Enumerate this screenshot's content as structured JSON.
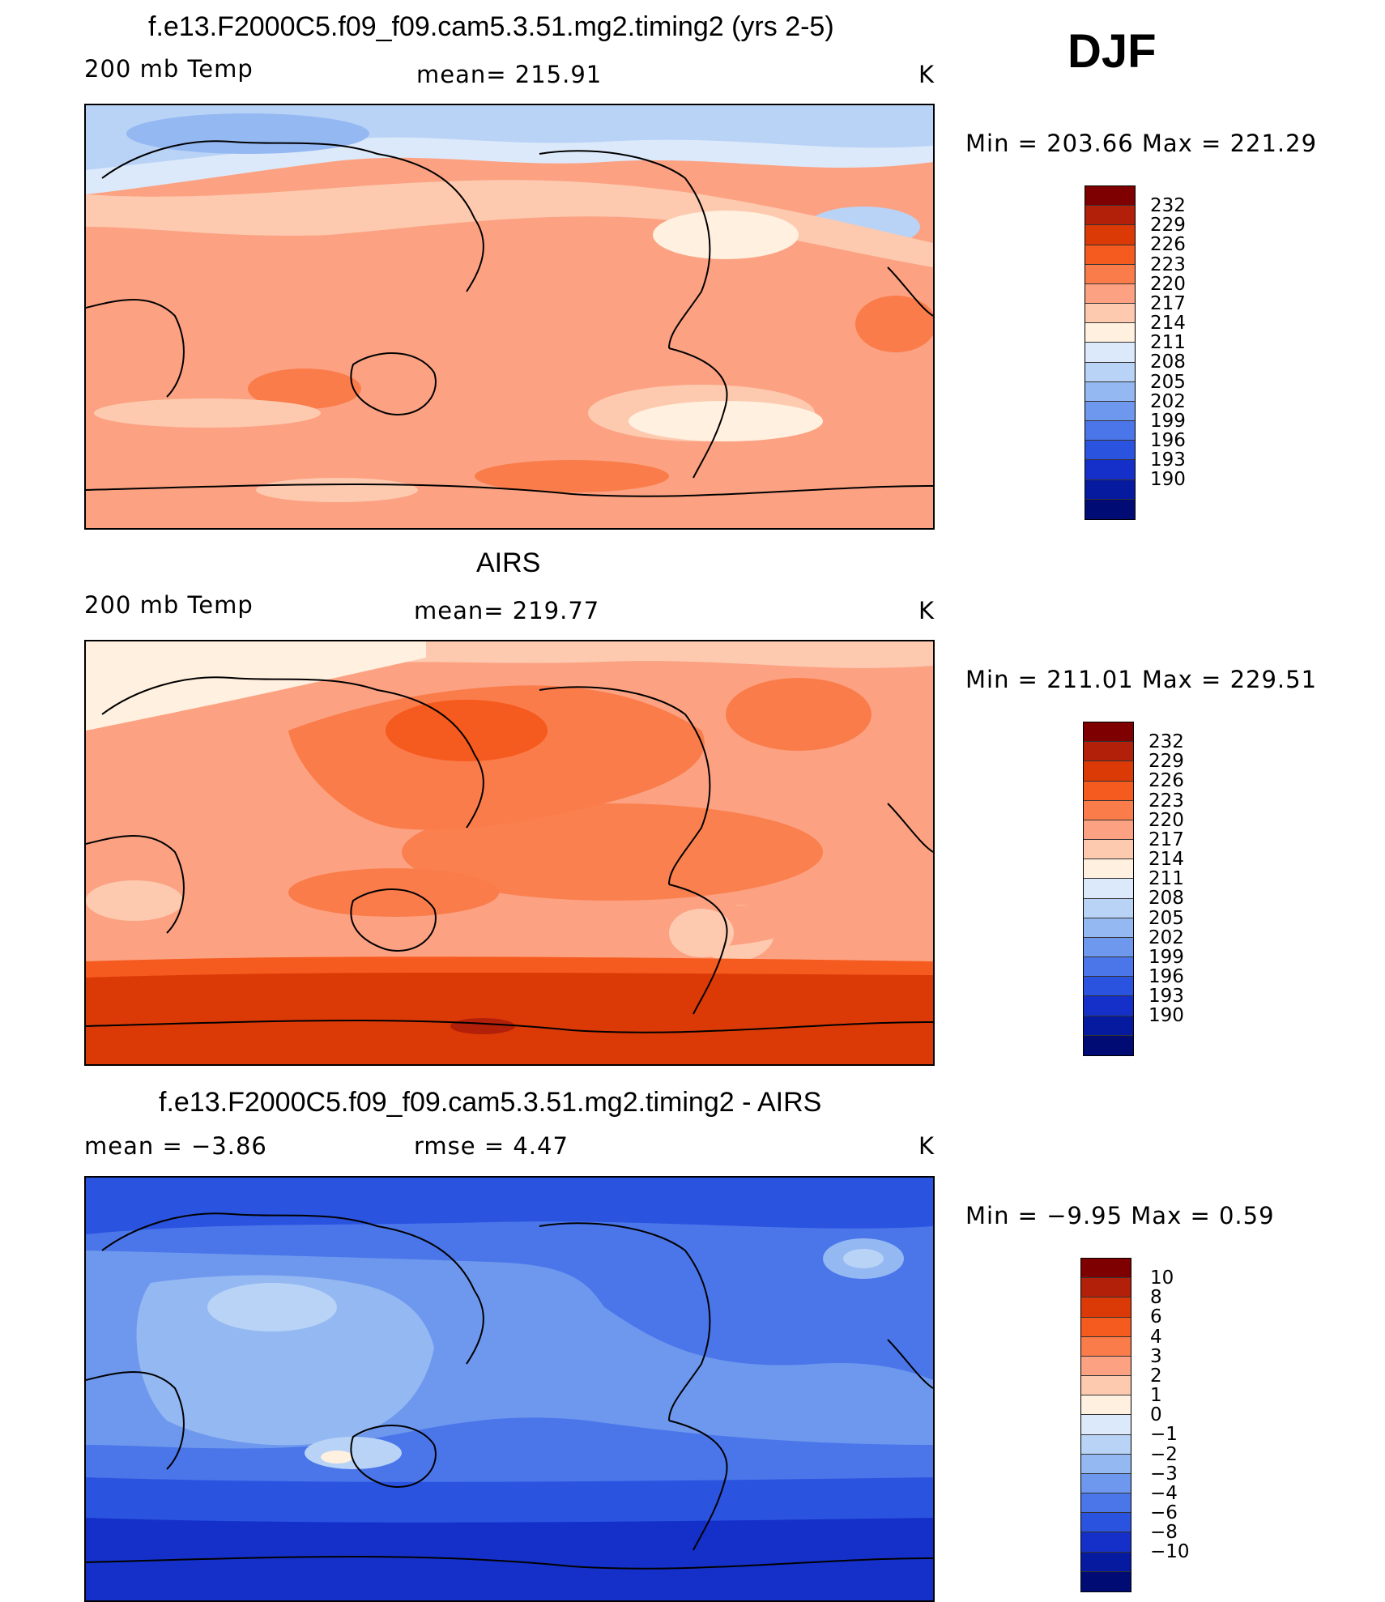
{
  "season": "DJF",
  "panels": [
    {
      "title": "f.e13.F2000C5.f09_f09.cam5.3.51.mg2.timing2 (yrs 2-5)",
      "left_label": "200 mb Temp",
      "center_label": "mean=  215.91",
      "units": "K",
      "range_text": "Min  =  203.66  Max  =  221.29",
      "colorbar": {
        "labels": [
          "232",
          "229",
          "226",
          "223",
          "220",
          "217",
          "214",
          "211",
          "208",
          "205",
          "202",
          "199",
          "196",
          "193",
          "190"
        ],
        "colors": [
          "#7f0000",
          "#b3200a",
          "#db3a07",
          "#f55a1e",
          "#fa7c4a",
          "#fca282",
          "#fdcab0",
          "#fff0df",
          "#dce9fa",
          "#b9d3f6",
          "#94b8f2",
          "#6e98ee",
          "#4a76ea",
          "#2a53e0",
          "#1430c8",
          "#061aa0",
          "#000c73"
        ]
      }
    },
    {
      "title": "AIRS",
      "left_label": "200 mb Temp",
      "center_label": "mean=  219.77",
      "units": "K",
      "range_text": "Min  =  211.01  Max  =  229.51",
      "colorbar": {
        "labels": [
          "232",
          "229",
          "226",
          "223",
          "220",
          "217",
          "214",
          "211",
          "208",
          "205",
          "202",
          "199",
          "196",
          "193",
          "190"
        ],
        "colors": [
          "#7f0000",
          "#b3200a",
          "#db3a07",
          "#f55a1e",
          "#fa7c4a",
          "#fca282",
          "#fdcab0",
          "#fff0df",
          "#dce9fa",
          "#b9d3f6",
          "#94b8f2",
          "#6e98ee",
          "#4a76ea",
          "#2a53e0",
          "#1430c8",
          "#061aa0",
          "#000c73"
        ]
      }
    },
    {
      "title": "f.e13.F2000C5.f09_f09.cam5.3.51.mg2.timing2 - AIRS",
      "left_label": "mean  =    −3.86",
      "center_label": "rmse  =     4.47",
      "units": "K",
      "range_text": "Min  =    −9.95  Max  =      0.59",
      "colorbar": {
        "labels": [
          "10",
          "8",
          "6",
          "4",
          "3",
          "2",
          "1",
          "0",
          "−1",
          "−2",
          "−3",
          "−4",
          "−6",
          "−8",
          "−10"
        ],
        "colors": [
          "#7f0000",
          "#b3200a",
          "#db3a07",
          "#f55a1e",
          "#fa7c4a",
          "#fca282",
          "#fdcab0",
          "#fff0df",
          "#dce9fa",
          "#b9d3f6",
          "#94b8f2",
          "#6e98ee",
          "#4a76ea",
          "#2a53e0",
          "#1430c8",
          "#061aa0",
          "#000c73"
        ]
      }
    }
  ]
}
